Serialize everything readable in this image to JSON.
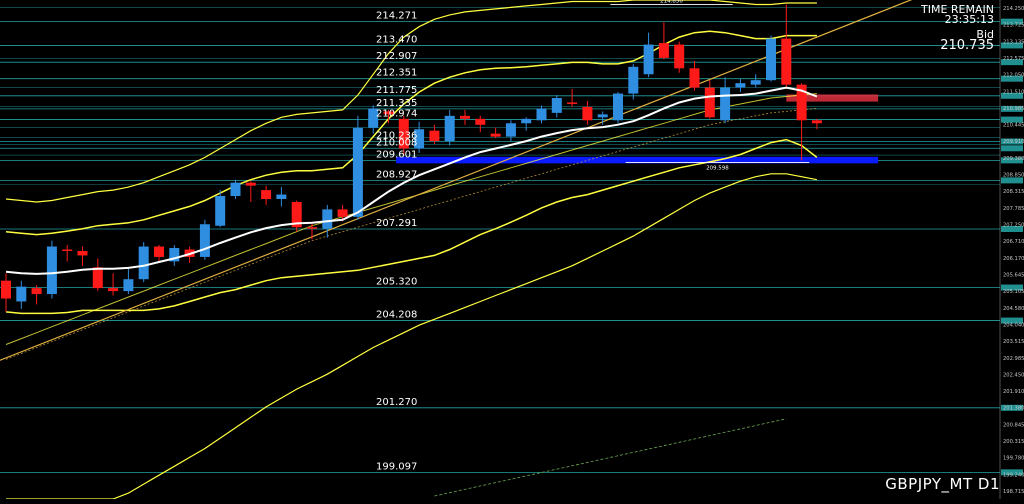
{
  "header": {
    "time_remain_label": "TIME REMAIN",
    "time_remain_value": "23:35:13",
    "bid_label": "Bid",
    "bid_value": "210.735"
  },
  "footer": {
    "symbol": "GBPJPY_MT D1"
  },
  "colors": {
    "background": "#000000",
    "bull": "#2f8ee0",
    "bear": "#ff1a1a",
    "level_line": "#2bbfc0",
    "band": "#ffff40",
    "midline": "#ffffff",
    "trendline": "#e0b040",
    "zone_blue": "#0a1cff",
    "zone_red": "#e03040"
  },
  "chart_data": {
    "type": "candlestick",
    "ylim": [
      198.2,
      215.0
    ],
    "level_labels": [
      {
        "price": 214.271,
        "text": "214.271"
      },
      {
        "price": 213.47,
        "text": "213.470"
      },
      {
        "price": 212.907,
        "text": "212.907"
      },
      {
        "price": 212.351,
        "text": "212.351"
      },
      {
        "price": 211.775,
        "text": "211.775"
      },
      {
        "price": 211.335,
        "text": "211.335"
      },
      {
        "price": 210.974,
        "text": "210.974"
      },
      {
        "price": 210.236,
        "text": "210.236"
      },
      {
        "price": 210.008,
        "text": "210.008"
      },
      {
        "price": 209.601,
        "text": "209.601"
      },
      {
        "price": 208.927,
        "text": "208.927"
      },
      {
        "price": 207.291,
        "text": "207.291"
      },
      {
        "price": 205.32,
        "text": "205.320"
      },
      {
        "price": 204.208,
        "text": "204.208"
      },
      {
        "price": 201.27,
        "text": "201.270"
      },
      {
        "price": 199.097,
        "text": "199.097"
      }
    ],
    "extra_levels": [
      214.75,
      213.03,
      212.06,
      211.42,
      210.7,
      210.37,
      210.13,
      209.78,
      208.78
    ],
    "axis_ticks": [
      "214.250",
      "213.725",
      "213.135",
      "212.575",
      "212.050",
      "211.510",
      "210.985",
      "210.445",
      "209.910",
      "209.380",
      "208.850",
      "208.315",
      "207.785",
      "207.250",
      "206.710",
      "206.170",
      "205.645",
      "205.105",
      "204.580",
      "204.040",
      "203.515",
      "202.985",
      "202.450",
      "201.910",
      "201.380",
      "200.845",
      "200.315",
      "199.780",
      "199.240",
      "198.715"
    ],
    "high_marker": {
      "price": 214.85,
      "text": "214.850"
    },
    "low_marker": {
      "price": 209.598,
      "text": "209.598"
    },
    "candles": [
      {
        "o": 205.55,
        "h": 205.8,
        "l": 204.5,
        "c": 204.95
      },
      {
        "o": 204.85,
        "h": 205.55,
        "l": 204.6,
        "c": 205.35
      },
      {
        "o": 205.3,
        "h": 205.4,
        "l": 204.75,
        "c": 205.1
      },
      {
        "o": 205.1,
        "h": 206.9,
        "l": 204.95,
        "c": 206.7
      },
      {
        "o": 206.6,
        "h": 206.75,
        "l": 206.2,
        "c": 206.55
      },
      {
        "o": 206.55,
        "h": 206.7,
        "l": 206.05,
        "c": 206.4
      },
      {
        "o": 206.0,
        "h": 206.3,
        "l": 205.2,
        "c": 205.3
      },
      {
        "o": 205.3,
        "h": 205.8,
        "l": 205.05,
        "c": 205.2
      },
      {
        "o": 205.2,
        "h": 205.95,
        "l": 205.1,
        "c": 205.6
      },
      {
        "o": 205.6,
        "h": 206.85,
        "l": 205.5,
        "c": 206.7
      },
      {
        "o": 206.7,
        "h": 206.75,
        "l": 206.2,
        "c": 206.35
      },
      {
        "o": 206.2,
        "h": 206.75,
        "l": 206.05,
        "c": 206.65
      },
      {
        "o": 206.6,
        "h": 206.7,
        "l": 206.15,
        "c": 206.35
      },
      {
        "o": 206.35,
        "h": 207.6,
        "l": 206.25,
        "c": 207.45
      },
      {
        "o": 207.4,
        "h": 208.6,
        "l": 207.35,
        "c": 208.4
      },
      {
        "o": 208.4,
        "h": 208.95,
        "l": 208.3,
        "c": 208.85
      },
      {
        "o": 208.85,
        "h": 208.9,
        "l": 208.2,
        "c": 208.75
      },
      {
        "o": 208.6,
        "h": 208.75,
        "l": 208.1,
        "c": 208.3
      },
      {
        "o": 208.3,
        "h": 208.7,
        "l": 208.05,
        "c": 208.45
      },
      {
        "o": 208.2,
        "h": 208.25,
        "l": 207.2,
        "c": 207.35
      },
      {
        "o": 207.35,
        "h": 207.5,
        "l": 206.95,
        "c": 207.3
      },
      {
        "o": 207.3,
        "h": 208.1,
        "l": 207.0,
        "c": 207.95
      },
      {
        "o": 207.95,
        "h": 208.1,
        "l": 207.55,
        "c": 207.7
      },
      {
        "o": 207.7,
        "h": 211.1,
        "l": 207.6,
        "c": 210.7
      },
      {
        "o": 210.7,
        "h": 211.45,
        "l": 210.5,
        "c": 211.35
      },
      {
        "o": 211.25,
        "h": 211.3,
        "l": 210.85,
        "c": 211.15
      },
      {
        "o": 211.0,
        "h": 211.1,
        "l": 209.75,
        "c": 210.0
      },
      {
        "o": 210.0,
        "h": 210.9,
        "l": 209.85,
        "c": 210.65
      },
      {
        "o": 210.6,
        "h": 210.8,
        "l": 210.15,
        "c": 210.25
      },
      {
        "o": 210.25,
        "h": 211.3,
        "l": 210.1,
        "c": 211.1
      },
      {
        "o": 211.1,
        "h": 211.3,
        "l": 210.8,
        "c": 211.0
      },
      {
        "o": 211.0,
        "h": 211.1,
        "l": 210.55,
        "c": 210.8
      },
      {
        "o": 210.5,
        "h": 210.7,
        "l": 210.35,
        "c": 210.4
      },
      {
        "o": 210.4,
        "h": 210.95,
        "l": 210.25,
        "c": 210.85
      },
      {
        "o": 210.85,
        "h": 211.05,
        "l": 210.6,
        "c": 211.0
      },
      {
        "o": 210.95,
        "h": 211.45,
        "l": 210.85,
        "c": 211.35
      },
      {
        "o": 211.2,
        "h": 211.8,
        "l": 211.05,
        "c": 211.7
      },
      {
        "o": 211.55,
        "h": 212.0,
        "l": 211.4,
        "c": 211.5
      },
      {
        "o": 211.4,
        "h": 211.6,
        "l": 210.8,
        "c": 210.95
      },
      {
        "o": 211.05,
        "h": 211.25,
        "l": 210.8,
        "c": 211.15
      },
      {
        "o": 210.95,
        "h": 211.9,
        "l": 210.85,
        "c": 211.85
      },
      {
        "o": 211.85,
        "h": 212.85,
        "l": 211.65,
        "c": 212.75
      },
      {
        "o": 212.5,
        "h": 213.9,
        "l": 212.4,
        "c": 213.5
      },
      {
        "o": 213.55,
        "h": 214.25,
        "l": 213.0,
        "c": 213.05
      },
      {
        "o": 213.5,
        "h": 213.6,
        "l": 212.55,
        "c": 212.7
      },
      {
        "o": 212.7,
        "h": 212.95,
        "l": 211.95,
        "c": 212.05
      },
      {
        "o": 212.05,
        "h": 212.3,
        "l": 211.0,
        "c": 211.05
      },
      {
        "o": 210.95,
        "h": 212.4,
        "l": 210.85,
        "c": 212.05
      },
      {
        "o": 212.05,
        "h": 212.35,
        "l": 211.9,
        "c": 212.2
      },
      {
        "o": 212.15,
        "h": 212.5,
        "l": 212.05,
        "c": 212.3
      },
      {
        "o": 212.3,
        "h": 213.8,
        "l": 212.25,
        "c": 213.7
      },
      {
        "o": 213.7,
        "h": 214.85,
        "l": 212.0,
        "c": 212.15
      },
      {
        "o": 212.15,
        "h": 212.2,
        "l": 209.6,
        "c": 210.95
      },
      {
        "o": 210.95,
        "h": 211.0,
        "l": 210.65,
        "c": 210.85
      }
    ],
    "midline": [
      205.85,
      205.8,
      205.78,
      205.8,
      205.85,
      205.92,
      205.95,
      205.95,
      205.98,
      206.05,
      206.18,
      206.3,
      206.45,
      206.62,
      206.82,
      207.0,
      207.18,
      207.32,
      207.42,
      207.48,
      207.5,
      207.55,
      207.6,
      207.85,
      208.2,
      208.55,
      208.85,
      209.1,
      209.3,
      209.5,
      209.7,
      209.88,
      210.0,
      210.12,
      210.25,
      210.4,
      210.52,
      210.62,
      210.68,
      210.72,
      210.8,
      210.92,
      211.12,
      211.35,
      211.55,
      211.68,
      211.75,
      211.78,
      211.8,
      211.85,
      211.95,
      212.05,
      211.95,
      211.75
    ],
    "upper_band_1": [
      207.2,
      207.15,
      207.1,
      207.15,
      207.22,
      207.3,
      207.4,
      207.45,
      207.5,
      207.6,
      207.75,
      207.9,
      208.05,
      208.25,
      208.5,
      208.75,
      208.95,
      209.1,
      209.2,
      209.25,
      209.25,
      209.3,
      209.35,
      209.8,
      210.4,
      211.0,
      211.5,
      211.9,
      212.2,
      212.4,
      212.55,
      212.65,
      212.7,
      212.72,
      212.75,
      212.8,
      212.85,
      212.9,
      212.9,
      212.85,
      212.85,
      212.95,
      213.2,
      213.5,
      213.75,
      213.9,
      213.95,
      213.9,
      213.8,
      213.7,
      213.7,
      213.8,
      213.8,
      213.8
    ],
    "lower_band_1": [
      204.5,
      204.45,
      204.45,
      204.45,
      204.48,
      204.55,
      204.55,
      204.55,
      204.55,
      204.55,
      204.6,
      204.7,
      204.85,
      205.0,
      205.15,
      205.25,
      205.4,
      205.55,
      205.65,
      205.7,
      205.75,
      205.8,
      205.85,
      205.9,
      206.0,
      206.1,
      206.2,
      206.3,
      206.4,
      206.6,
      206.85,
      207.1,
      207.3,
      207.52,
      207.75,
      208.0,
      208.2,
      208.35,
      208.45,
      208.6,
      208.75,
      208.9,
      209.05,
      209.2,
      209.35,
      209.45,
      209.55,
      209.66,
      209.8,
      210.0,
      210.2,
      210.3,
      210.1,
      209.7
    ],
    "upper_band_2": [
      208.3,
      208.25,
      208.2,
      208.25,
      208.35,
      208.45,
      208.55,
      208.6,
      208.7,
      208.85,
      209.05,
      209.25,
      209.45,
      209.7,
      210.0,
      210.3,
      210.6,
      210.85,
      211.05,
      211.15,
      211.2,
      211.25,
      211.3,
      211.8,
      212.5,
      213.2,
      213.75,
      214.1,
      214.35,
      214.5,
      214.6,
      214.65,
      214.7,
      214.75,
      214.8,
      214.85,
      214.9,
      214.95,
      214.95,
      214.95,
      214.95,
      215.0,
      215.0,
      215.0,
      215.0,
      215.0,
      215.0,
      214.95,
      214.9,
      214.85,
      214.85,
      214.9,
      214.9,
      214.9
    ],
    "lower_band_2": [
      198.2,
      198.2,
      198.2,
      198.2,
      198.2,
      198.2,
      198.2,
      198.2,
      198.4,
      198.7,
      199.0,
      199.3,
      199.6,
      199.9,
      200.25,
      200.6,
      200.95,
      201.3,
      201.6,
      201.9,
      202.15,
      202.4,
      202.7,
      203.0,
      203.3,
      203.55,
      203.8,
      204.05,
      204.25,
      204.45,
      204.65,
      204.85,
      205.05,
      205.25,
      205.45,
      205.65,
      205.85,
      206.05,
      206.3,
      206.55,
      206.8,
      207.05,
      207.35,
      207.65,
      207.95,
      208.25,
      208.5,
      208.7,
      208.9,
      209.05,
      209.15,
      209.15,
      209.05,
      208.95
    ],
    "slow_line": [
      203.4,
      203.6,
      203.8,
      204.0,
      204.2,
      204.4,
      204.6,
      204.8,
      205.0,
      205.2,
      205.4,
      205.6,
      205.8,
      206.0,
      206.2,
      206.4,
      206.6,
      206.8,
      207.0,
      207.2,
      207.4,
      207.55,
      207.7,
      207.85,
      208.0,
      208.15,
      208.3,
      208.45,
      208.6,
      208.75,
      208.9,
      209.05,
      209.2,
      209.35,
      209.5,
      209.65,
      209.8,
      209.95,
      210.1,
      210.25,
      210.4,
      210.55,
      210.7,
      210.85,
      211.0,
      211.15,
      211.3,
      211.4,
      211.5,
      211.6,
      211.7,
      211.75,
      211.8,
      211.85
    ],
    "dotted_line": [
      202.9,
      203.1,
      203.3,
      203.5,
      203.7,
      203.9,
      204.1,
      204.3,
      204.5,
      204.7,
      204.9,
      205.1,
      205.3,
      205.5,
      205.7,
      205.9,
      206.1,
      206.3,
      206.5,
      206.7,
      206.9,
      207.05,
      207.2,
      207.35,
      207.5,
      207.65,
      207.8,
      207.95,
      208.1,
      208.25,
      208.4,
      208.55,
      208.7,
      208.85,
      209.0,
      209.15,
      209.3,
      209.45,
      209.6,
      209.75,
      209.9,
      210.05,
      210.2,
      210.35,
      210.5,
      210.65,
      210.8,
      210.9,
      211.0,
      211.1,
      211.2,
      211.25,
      211.3,
      211.35
    ],
    "trendline": {
      "from": {
        "i": -0.5,
        "price": 202.85
      },
      "to": {
        "i": 66,
        "price": 216.4
      }
    },
    "lower_trend": {
      "from": {
        "i": 28,
        "price": 198.3
      },
      "to": {
        "i": 51,
        "price": 200.9
      }
    },
    "zones": [
      {
        "color": "blue",
        "top": 209.72,
        "bottom": 209.5,
        "from_i": 25.5,
        "to_i": 57
      },
      {
        "color": "red",
        "top": 211.82,
        "bottom": 211.58,
        "from_i": 51,
        "to_i": 57
      }
    ]
  }
}
